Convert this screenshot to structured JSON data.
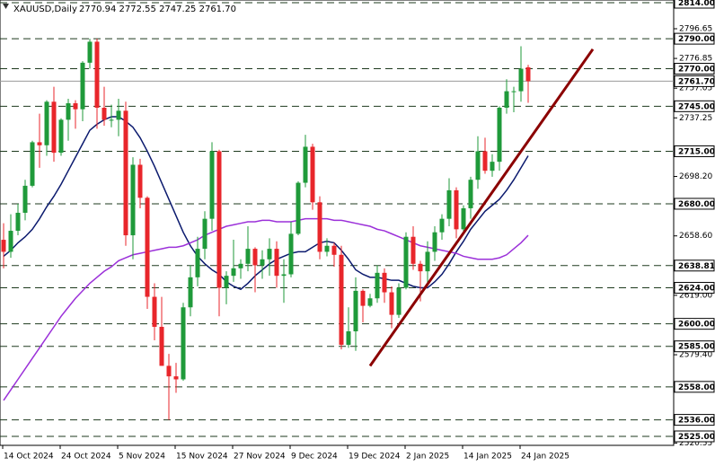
{
  "chart_data": {
    "type": "candlestick",
    "title": "XAUUSD,Daily",
    "ohlc_text": "2770.94 2772.55 2747.25 2761.70",
    "categories": [
      "14 Oct 2024",
      null,
      null,
      null,
      null,
      null,
      null,
      null,
      "24 Oct 2024",
      null,
      null,
      null,
      null,
      null,
      null,
      null,
      "5 Nov 2024",
      null,
      null,
      null,
      null,
      null,
      null,
      null,
      "15 Nov 2024",
      null,
      null,
      null,
      null,
      null,
      null,
      null,
      "27 Nov 2024",
      null,
      null,
      null,
      null,
      null,
      null,
      null,
      "9 Dec 2024",
      null,
      null,
      null,
      null,
      null,
      null,
      null,
      "19 Dec 2024",
      null,
      null,
      null,
      null,
      null,
      null,
      null,
      "2 Jan 2025",
      null,
      null,
      null,
      null,
      null,
      null,
      null,
      "14 Jan 2025",
      null,
      null,
      null,
      null,
      null,
      null,
      null,
      "24 Jan 2025",
      null
    ],
    "open": [
      2656,
      2648,
      2662,
      2674,
      2692,
      2721,
      2719,
      2748,
      2714,
      2736,
      2747,
      2743,
      2774,
      2788,
      2744,
      2736,
      2736,
      2742,
      2659,
      2706,
      2684,
      2618,
      2598,
      2572,
      2565,
      2563,
      2611,
      2631,
      2650,
      2670,
      2715,
      2624,
      2632,
      2637,
      2640,
      2650,
      2639,
      2643,
      2650,
      2632,
      2633,
      2660,
      2694,
      2718,
      2681,
      2648,
      2652,
      2646,
      2586,
      2595,
      2622,
      2612,
      2617,
      2634,
      2621,
      2606,
      2624,
      2658,
      2640,
      2635,
      2648,
      2661,
      2670,
      2689,
      2663,
      2677,
      2696,
      2715,
      2702,
      2708,
      2744,
      2755,
      2755,
      2770.94
    ],
    "high": [
      2667,
      2673,
      2680,
      2696,
      2722,
      2740,
      2749,
      2758,
      2737,
      2750,
      2749,
      2775,
      2790,
      2790,
      2758,
      2746,
      2750,
      2748,
      2711,
      2710,
      2685,
      2627,
      2618,
      2580,
      2574,
      2614,
      2639,
      2658,
      2675,
      2721,
      2716,
      2635,
      2656,
      2643,
      2665,
      2651,
      2649,
      2657,
      2655,
      2643,
      2668,
      2695,
      2726,
      2720,
      2685,
      2657,
      2654,
      2652,
      2611,
      2631,
      2623,
      2620,
      2639,
      2637,
      2625,
      2627,
      2661,
      2665,
      2642,
      2655,
      2665,
      2673,
      2697,
      2691,
      2679,
      2698,
      2725,
      2724,
      2713,
      2745,
      2763,
      2758,
      2785,
      2772.55
    ],
    "low": [
      2637,
      2644,
      2659,
      2669,
      2691,
      2704,
      2712,
      2708,
      2712,
      2722,
      2730,
      2735,
      2770,
      2730,
      2732,
      2731,
      2725,
      2652,
      2643,
      2677,
      2610,
      2589,
      2572,
      2536,
      2554,
      2562,
      2605,
      2625,
      2643,
      2662,
      2605,
      2613,
      2628,
      2630,
      2635,
      2621,
      2630,
      2632,
      2624,
      2614,
      2631,
      2659,
      2691,
      2676,
      2643,
      2645,
      2638,
      2583,
      2584,
      2582,
      2601,
      2611,
      2614,
      2614,
      2597,
      2604,
      2623,
      2636,
      2615,
      2625,
      2642,
      2656,
      2665,
      2657,
      2660,
      2670,
      2690,
      2700,
      2698,
      2702,
      2740,
      2741,
      2748,
      2747.25
    ],
    "close": [
      2648,
      2662,
      2674,
      2692,
      2721,
      2719,
      2748,
      2714,
      2736,
      2747,
      2743,
      2774,
      2788,
      2744,
      2736,
      2736,
      2742,
      2659,
      2706,
      2684,
      2618,
      2598,
      2572,
      2565,
      2563,
      2611,
      2631,
      2650,
      2670,
      2715,
      2624,
      2632,
      2637,
      2640,
      2650,
      2639,
      2643,
      2650,
      2632,
      2633,
      2660,
      2694,
      2718,
      2681,
      2648,
      2652,
      2646,
      2586,
      2595,
      2622,
      2612,
      2617,
      2634,
      2621,
      2606,
      2624,
      2658,
      2640,
      2635,
      2648,
      2661,
      2670,
      2689,
      2663,
      2677,
      2696,
      2715,
      2702,
      2708,
      2744,
      2755,
      2755,
      2770,
      2761.7
    ],
    "up_color": "#1f9a3a",
    "down_color": "#e8262b",
    "lines": [
      {
        "color": "#0b1a6e",
        "values": [
          2645,
          2649,
          2654,
          2658,
          2663,
          2670,
          2678,
          2685,
          2693,
          2702,
          2711,
          2720,
          2729,
          2733,
          2736,
          2738,
          2738,
          2735,
          2731,
          2724,
          2715,
          2705,
          2694,
          2683,
          2672,
          2661,
          2652,
          2645,
          2640,
          2636,
          2633,
          2628,
          2625,
          2623,
          2627,
          2632,
          2636,
          2640,
          2643,
          2645,
          2647,
          2648,
          2648,
          2651,
          2654,
          2655,
          2654,
          2649,
          2643,
          2636,
          2633,
          2631,
          2631,
          2630,
          2629,
          2629,
          2627,
          2625,
          2624,
          2624,
          2628,
          2633,
          2640,
          2648,
          2655,
          2663,
          2669,
          2675,
          2679,
          2683,
          2689,
          2696,
          2704,
          2712
        ]
      },
      {
        "color": "#9b30d9",
        "values": [
          2549,
          2556,
          2563,
          2570,
          2577,
          2584,
          2591,
          2598,
          2605,
          2611,
          2617,
          2622,
          2627,
          2631,
          2635,
          2638,
          2642,
          2644,
          2646,
          2647,
          2648,
          2649,
          2650,
          2651,
          2651,
          2652,
          2654,
          2656,
          2659,
          2661,
          2663,
          2665,
          2666,
          2667,
          2668,
          2668,
          2669,
          2669,
          2668,
          2668,
          2668,
          2669,
          2670,
          2670,
          2670,
          2670,
          2669,
          2669,
          2668,
          2667,
          2666,
          2665,
          2663,
          2662,
          2660,
          2658,
          2656,
          2654,
          2652,
          2651,
          2650,
          2649,
          2648,
          2647,
          2645,
          2644,
          2643,
          2643,
          2643,
          2644,
          2646,
          2650,
          2654,
          2659
        ]
      }
    ],
    "trendline": {
      "color": "#8b0000",
      "x": [
        51,
        82
      ],
      "y": [
        2572,
        2783
      ]
    },
    "ylim": [
      2525,
      2814
    ],
    "yticks": [
      {
        "value": 2796.65,
        "label": "2796.65"
      },
      {
        "value": 2776.85,
        "label": "2776.85"
      },
      {
        "value": 2757.05,
        "label": "2757.05"
      },
      {
        "value": 2737.25,
        "label": "2737.25"
      },
      {
        "value": 2698.2,
        "label": "2698.20"
      },
      {
        "value": 2658.6,
        "label": "2658.60"
      },
      {
        "value": 2619,
        "label": "2619.00"
      },
      {
        "value": 2579.4,
        "label": "2579.40"
      },
      {
        "value": 2520.55,
        "label": "2520.55"
      }
    ],
    "levels": [
      {
        "value": 2814,
        "label": "2814.00"
      },
      {
        "value": 2790,
        "label": "2790.00"
      },
      {
        "value": 2770,
        "label": "2770.00"
      },
      {
        "value": 2745,
        "label": "2745.00"
      },
      {
        "value": 2715,
        "label": "2715.00"
      },
      {
        "value": 2680,
        "label": "2680.00"
      },
      {
        "value": 2638.81,
        "label": "2638.81"
      },
      {
        "value": 2624,
        "label": "2624.00"
      },
      {
        "value": 2600,
        "label": "2600.00"
      },
      {
        "value": 2585,
        "label": "2585.00"
      },
      {
        "value": 2558,
        "label": "2558.00"
      },
      {
        "value": 2536,
        "label": "2536.00"
      },
      {
        "value": 2525,
        "label": "2525.00"
      }
    ],
    "last_price": {
      "value": 2761.7,
      "label": "2761.70"
    }
  }
}
